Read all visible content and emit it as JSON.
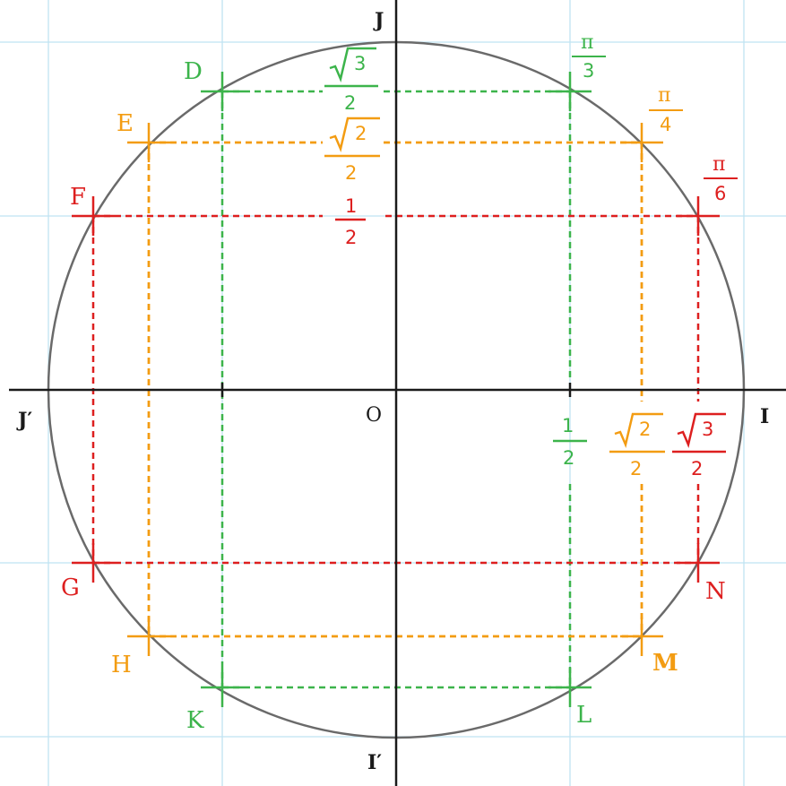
{
  "colors": {
    "grid": "#bfe3f2",
    "axis": "#1a1a1a",
    "circle": "#6a6a6a",
    "green": "#3cb44b",
    "orange": "#f39c12",
    "red": "#dd1f1f"
  },
  "axis_labels": {
    "J": "J",
    "J_prime": "J′",
    "I": "I",
    "I_prime": "I′",
    "O": "O"
  },
  "points": {
    "D": "D",
    "E": "E",
    "F": "F",
    "G": "G",
    "H": "H",
    "K": "K",
    "L": "L",
    "M": "M",
    "N": "N"
  },
  "fractions": {
    "pi_3": {
      "num": "π",
      "den": "3"
    },
    "pi_4": {
      "num": "π",
      "den": "4"
    },
    "pi_6": {
      "num": "π",
      "den": "6"
    },
    "sqrt3_2_top": {
      "rad": "3",
      "den": "2"
    },
    "sqrt2_2_top": {
      "rad": "2",
      "den": "2"
    },
    "one_half_top": {
      "num": "1",
      "den": "2"
    },
    "one_half_x": {
      "num": "1",
      "den": "2"
    },
    "sqrt2_2_x": {
      "rad": "2",
      "den": "2"
    },
    "sqrt3_2_x": {
      "rad": "3",
      "den": "2"
    }
  }
}
